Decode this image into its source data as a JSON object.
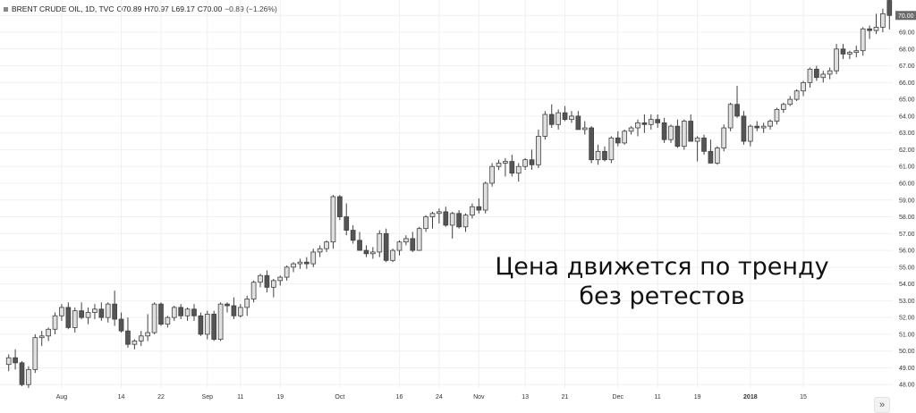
{
  "header": {
    "symbol": "BRENT CRUDE OIL, 1D, TVC",
    "open": "O70.89",
    "high": "H70.97",
    "low": "L69.17",
    "close": "C70.00",
    "change": "−0.89 (−1.26%)"
  },
  "annotation": {
    "line1": "Цена движется по тренду",
    "line2": "без ретестов"
  },
  "scroll_button": {
    "icon": "double-chevron-right-icon",
    "glyph": "»"
  },
  "last_price_label": "70.00",
  "colors": {
    "up": "#e0e0e0",
    "down": "#555555",
    "outline": "#404040",
    "grid": "#f0f0f0",
    "last_price_tag": "#6a6a6a"
  },
  "chart_data": {
    "type": "candlestick",
    "title": "",
    "xlabel": "",
    "ylabel": "",
    "ylim": [
      47.8,
      70.6
    ],
    "grid": true,
    "x_ticks": [
      {
        "label": "Aug",
        "i": 8,
        "bold": false
      },
      {
        "label": "14",
        "i": 17,
        "bold": false
      },
      {
        "label": "22",
        "i": 23,
        "bold": false
      },
      {
        "label": "Sep",
        "i": 30,
        "bold": false
      },
      {
        "label": "11",
        "i": 35,
        "bold": false
      },
      {
        "label": "19",
        "i": 41,
        "bold": false
      },
      {
        "label": "Oct",
        "i": 50,
        "bold": false
      },
      {
        "label": "16",
        "i": 59,
        "bold": false
      },
      {
        "label": "24",
        "i": 65,
        "bold": false
      },
      {
        "label": "Nov",
        "i": 71,
        "bold": false
      },
      {
        "label": "13",
        "i": 78,
        "bold": false
      },
      {
        "label": "21",
        "i": 84,
        "bold": false
      },
      {
        "label": "Dec",
        "i": 92,
        "bold": false
      },
      {
        "label": "11",
        "i": 98,
        "bold": false
      },
      {
        "label": "19",
        "i": 104,
        "bold": false
      },
      {
        "label": "2018",
        "i": 112,
        "bold": true
      },
      {
        "label": "15",
        "i": 120,
        "bold": false
      }
    ],
    "y_ticks": [
      "48.00",
      "49.00",
      "50.00",
      "51.00",
      "52.00",
      "53.00",
      "54.00",
      "55.00",
      "56.00",
      "57.00",
      "58.00",
      "59.00",
      "60.00",
      "61.00",
      "62.00",
      "63.00",
      "64.00",
      "65.00",
      "66.00",
      "67.00",
      "68.00",
      "69.00",
      "70.00"
    ],
    "candles": [
      [
        49.2,
        49.8,
        48.8,
        49.6
      ],
      [
        49.6,
        50.1,
        48.9,
        49.3
      ],
      [
        49.3,
        49.4,
        47.9,
        48.0
      ],
      [
        48.0,
        49.1,
        47.8,
        48.9
      ],
      [
        48.9,
        51.0,
        48.7,
        50.8
      ],
      [
        50.8,
        51.2,
        50.3,
        50.9
      ],
      [
        50.9,
        51.4,
        50.6,
        51.3
      ],
      [
        51.3,
        52.3,
        51.0,
        52.1
      ],
      [
        52.1,
        52.8,
        51.8,
        52.6
      ],
      [
        52.6,
        52.9,
        51.3,
        51.4
      ],
      [
        51.4,
        52.6,
        51.1,
        52.4
      ],
      [
        52.4,
        52.9,
        51.9,
        52.0
      ],
      [
        52.0,
        52.6,
        51.6,
        52.3
      ],
      [
        52.3,
        52.8,
        51.9,
        52.5
      ],
      [
        52.5,
        52.9,
        51.8,
        52.0
      ],
      [
        52.0,
        52.9,
        51.7,
        52.8
      ],
      [
        52.8,
        53.6,
        51.5,
        51.9
      ],
      [
        51.9,
        52.3,
        51.1,
        51.2
      ],
      [
        51.2,
        52.0,
        50.2,
        50.4
      ],
      [
        50.4,
        50.7,
        50.1,
        50.6
      ],
      [
        50.6,
        51.2,
        50.3,
        50.9
      ],
      [
        50.9,
        52.2,
        50.6,
        51.1
      ],
      [
        51.1,
        52.9,
        51.0,
        52.8
      ],
      [
        52.8,
        52.9,
        51.5,
        51.6
      ],
      [
        51.6,
        52.1,
        51.4,
        52.0
      ],
      [
        52.0,
        52.7,
        51.8,
        52.6
      ],
      [
        52.6,
        52.8,
        51.9,
        52.1
      ],
      [
        52.1,
        52.6,
        51.8,
        52.5
      ],
      [
        52.5,
        52.8,
        51.8,
        52.1
      ],
      [
        52.1,
        52.3,
        50.9,
        51.0
      ],
      [
        51.0,
        52.4,
        50.7,
        52.2
      ],
      [
        52.2,
        52.4,
        50.6,
        50.7
      ],
      [
        50.7,
        52.9,
        50.6,
        52.8
      ],
      [
        52.8,
        52.9,
        52.3,
        52.7
      ],
      [
        52.7,
        53.2,
        51.9,
        52.1
      ],
      [
        52.1,
        52.8,
        52.0,
        52.6
      ],
      [
        52.6,
        53.3,
        52.1,
        53.1
      ],
      [
        53.1,
        54.2,
        52.9,
        54.1
      ],
      [
        54.1,
        54.6,
        53.8,
        54.5
      ],
      [
        54.5,
        54.8,
        53.5,
        53.8
      ],
      [
        53.8,
        54.3,
        53.2,
        54.2
      ],
      [
        54.2,
        54.5,
        53.9,
        54.4
      ],
      [
        54.4,
        55.1,
        54.2,
        55.0
      ],
      [
        55.0,
        55.3,
        54.7,
        55.2
      ],
      [
        55.2,
        55.5,
        54.9,
        55.3
      ],
      [
        55.3,
        55.6,
        54.9,
        55.2
      ],
      [
        55.2,
        56.1,
        55.0,
        55.9
      ],
      [
        55.9,
        56.3,
        55.6,
        56.1
      ],
      [
        56.1,
        56.6,
        55.9,
        56.5
      ],
      [
        56.5,
        59.3,
        56.1,
        59.2
      ],
      [
        59.2,
        59.3,
        57.8,
        58.0
      ],
      [
        58.0,
        58.8,
        56.9,
        57.2
      ],
      [
        57.2,
        57.5,
        56.4,
        56.6
      ],
      [
        56.6,
        57.1,
        56.2,
        56.0
      ],
      [
        56.0,
        56.3,
        55.6,
        55.8
      ],
      [
        55.8,
        56.2,
        55.5,
        55.9
      ],
      [
        55.9,
        57.2,
        55.6,
        57.0
      ],
      [
        57.0,
        57.3,
        55.3,
        55.4
      ],
      [
        55.4,
        56.1,
        55.3,
        56.0
      ],
      [
        56.0,
        56.6,
        55.7,
        56.5
      ],
      [
        56.5,
        56.9,
        56.3,
        56.7
      ],
      [
        56.7,
        57.1,
        55.9,
        56.0
      ],
      [
        56.0,
        57.4,
        56.0,
        57.3
      ],
      [
        57.3,
        58.1,
        57.1,
        58.0
      ],
      [
        58.0,
        58.3,
        57.3,
        58.2
      ],
      [
        58.2,
        58.5,
        57.6,
        58.3
      ],
      [
        58.3,
        58.6,
        57.4,
        57.5
      ],
      [
        57.5,
        58.3,
        56.7,
        58.2
      ],
      [
        58.2,
        58.4,
        57.3,
        57.4
      ],
      [
        57.4,
        58.2,
        57.1,
        58.1
      ],
      [
        58.1,
        58.8,
        57.9,
        58.6
      ],
      [
        58.6,
        59.1,
        58.2,
        58.4
      ],
      [
        58.4,
        60.1,
        58.2,
        60.0
      ],
      [
        60.0,
        61.2,
        59.8,
        61.0
      ],
      [
        61.0,
        61.4,
        60.8,
        61.2
      ],
      [
        61.2,
        61.5,
        60.4,
        61.3
      ],
      [
        61.3,
        61.7,
        60.4,
        60.6
      ],
      [
        60.6,
        61.2,
        60.1,
        61.0
      ],
      [
        61.0,
        61.5,
        60.8,
        61.4
      ],
      [
        61.4,
        62.0,
        60.8,
        61.1
      ],
      [
        61.1,
        63.2,
        60.9,
        62.8
      ],
      [
        62.8,
        64.3,
        62.6,
        64.1
      ],
      [
        64.1,
        64.7,
        63.3,
        63.5
      ],
      [
        63.5,
        64.4,
        63.2,
        64.2
      ],
      [
        64.2,
        64.6,
        63.7,
        63.8
      ],
      [
        63.8,
        64.3,
        63.6,
        64.0
      ],
      [
        64.0,
        64.3,
        63.2,
        63.2
      ],
      [
        63.2,
        63.7,
        62.9,
        63.3
      ],
      [
        63.3,
        63.4,
        61.2,
        61.4
      ],
      [
        61.4,
        62.3,
        61.1,
        61.9
      ],
      [
        61.9,
        62.2,
        61.3,
        61.4
      ],
      [
        61.4,
        62.8,
        61.2,
        62.7
      ],
      [
        62.7,
        63.1,
        62.2,
        62.4
      ],
      [
        62.4,
        63.2,
        62.3,
        63.1
      ],
      [
        63.1,
        63.4,
        62.9,
        63.3
      ],
      [
        63.3,
        63.8,
        62.8,
        63.6
      ],
      [
        63.6,
        64.1,
        63.0,
        63.5
      ],
      [
        63.5,
        64.1,
        63.2,
        63.8
      ],
      [
        63.8,
        64.1,
        63.3,
        63.6
      ],
      [
        63.6,
        63.9,
        62.4,
        62.6
      ],
      [
        62.6,
        63.5,
        62.4,
        63.4
      ],
      [
        63.4,
        63.8,
        62.1,
        62.2
      ],
      [
        62.2,
        63.8,
        62.0,
        63.7
      ],
      [
        63.7,
        64.1,
        62.5,
        62.5
      ],
      [
        62.5,
        62.8,
        61.3,
        62.7
      ],
      [
        62.7,
        62.9,
        61.7,
        61.9
      ],
      [
        61.9,
        62.6,
        61.2,
        61.2
      ],
      [
        61.2,
        62.2,
        61.1,
        62.1
      ],
      [
        62.1,
        63.5,
        61.9,
        63.3
      ],
      [
        63.3,
        64.8,
        63.1,
        64.7
      ],
      [
        64.7,
        65.8,
        63.9,
        64.0
      ],
      [
        64.0,
        64.3,
        62.3,
        62.5
      ],
      [
        62.5,
        63.5,
        62.2,
        63.4
      ],
      [
        63.4,
        63.7,
        63.1,
        63.3
      ],
      [
        63.3,
        63.6,
        63.0,
        63.4
      ],
      [
        63.4,
        63.8,
        63.2,
        63.7
      ],
      [
        63.7,
        64.5,
        63.5,
        64.4
      ],
      [
        64.4,
        64.8,
        64.2,
        64.7
      ],
      [
        64.7,
        65.2,
        64.6,
        65.0
      ],
      [
        65.0,
        65.6,
        64.9,
        65.5
      ],
      [
        65.5,
        66.1,
        65.2,
        66.0
      ],
      [
        66.0,
        66.9,
        65.7,
        66.8
      ],
      [
        66.8,
        67.0,
        66.1,
        66.3
      ],
      [
        66.3,
        66.7,
        66.0,
        66.5
      ],
      [
        66.5,
        66.9,
        66.2,
        66.7
      ],
      [
        66.7,
        68.3,
        66.5,
        68.0
      ],
      [
        68.0,
        68.3,
        67.4,
        67.7
      ],
      [
        67.7,
        67.9,
        67.4,
        67.8
      ],
      [
        67.8,
        68.2,
        67.5,
        67.9
      ],
      [
        67.9,
        69.3,
        67.6,
        69.2
      ],
      [
        69.2,
        69.4,
        68.6,
        69.1
      ],
      [
        69.1,
        70.1,
        68.9,
        69.3
      ],
      [
        69.3,
        70.4,
        69.0,
        70.1
      ],
      [
        70.89,
        70.97,
        69.17,
        70.0
      ]
    ]
  }
}
